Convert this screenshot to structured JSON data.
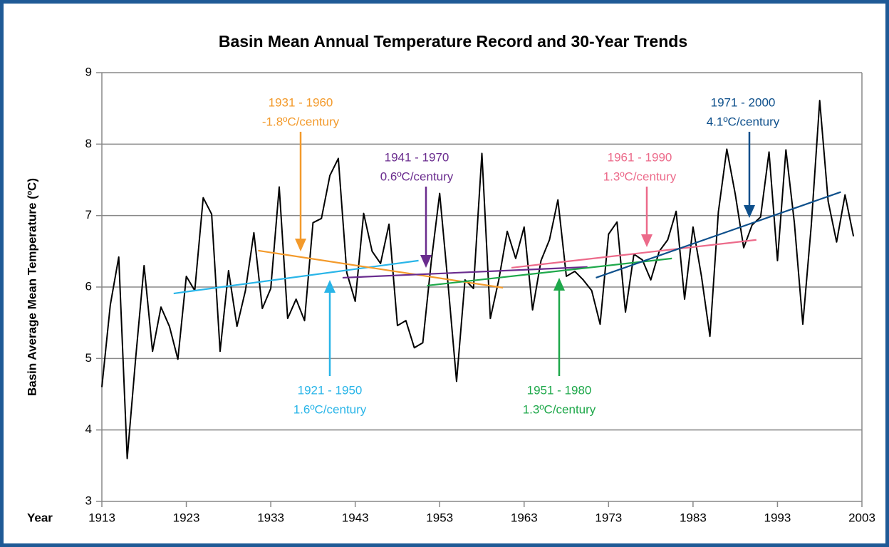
{
  "chart_data": {
    "type": "line",
    "title": "Basin Mean Annual Temperature Record and 30-Year Trends",
    "y_label": "Basin Average Mean Temperature (ºC)",
    "x_label": "Year",
    "xlim": [
      1913,
      2003
    ],
    "xticks": [
      1913,
      1923,
      1933,
      1943,
      1953,
      1963,
      1973,
      1983,
      1993,
      2003
    ],
    "ylim": [
      3,
      9
    ],
    "yticks": [
      3,
      4,
      5,
      6,
      7,
      8,
      9
    ],
    "grid": true,
    "series": [
      {
        "color": "#000000",
        "x": [
          1913,
          1914,
          1915,
          1916,
          1917,
          1918,
          1919,
          1920,
          1921,
          1922,
          1923,
          1924,
          1925,
          1926,
          1927,
          1928,
          1929,
          1930,
          1931,
          1932,
          1933,
          1934,
          1935,
          1936,
          1937,
          1938,
          1939,
          1940,
          1941,
          1942,
          1943,
          1944,
          1945,
          1946,
          1947,
          1948,
          1949,
          1950,
          1951,
          1952,
          1953,
          1954,
          1955,
          1956,
          1957,
          1958,
          1959,
          1960,
          1961,
          1962,
          1963,
          1964,
          1965,
          1966,
          1967,
          1968,
          1969,
          1970,
          1971,
          1972,
          1973,
          1974,
          1975,
          1976,
          1977,
          1978,
          1979,
          1980,
          1981,
          1982,
          1983,
          1984,
          1985,
          1986,
          1987,
          1988,
          1989,
          1990,
          1991,
          1992,
          1993,
          1994,
          1995,
          1996,
          1997,
          1998,
          1999,
          2000,
          2001,
          2002
        ],
        "values": [
          4.6,
          5.75,
          6.42,
          3.6,
          5.0,
          6.3,
          5.1,
          5.72,
          5.45,
          4.99,
          6.15,
          5.95,
          7.25,
          7.02,
          5.1,
          6.23,
          5.45,
          5.95,
          6.76,
          5.7,
          5.98,
          7.4,
          5.56,
          5.83,
          5.53,
          6.9,
          6.96,
          7.56,
          7.8,
          6.2,
          5.8,
          7.03,
          6.5,
          6.33,
          6.88,
          5.46,
          5.53,
          5.15,
          5.22,
          6.35,
          7.31,
          6.03,
          4.68,
          6.1,
          5.98,
          7.87,
          5.56,
          6.1,
          6.78,
          6.4,
          6.84,
          5.68,
          6.37,
          6.66,
          7.22,
          6.15,
          6.22,
          6.1,
          5.95,
          5.48,
          6.74,
          6.91,
          5.65,
          6.46,
          6.38,
          6.1,
          6.5,
          6.66,
          7.06,
          5.83,
          6.84,
          6.15,
          5.31,
          7.05,
          7.93,
          7.3,
          6.55,
          6.87,
          6.98,
          7.89,
          6.37,
          7.92,
          6.9,
          5.48,
          6.86,
          8.61,
          7.2,
          6.63,
          7.29,
          6.71
        ]
      },
      {
        "color": "#29b5e8",
        "x": [
          1921.5,
          1950.5
        ],
        "values": [
          5.91,
          6.37
        ]
      },
      {
        "color": "#f39a2b",
        "x": [
          1931.5,
          1960.5
        ],
        "values": [
          6.51,
          5.99
        ]
      },
      {
        "color": "#6a2c8e",
        "x": [
          1941.5,
          1970.5
        ],
        "values": [
          6.13,
          6.28
        ]
      },
      {
        "color": "#1ea84a",
        "x": [
          1951.5,
          1980.5
        ],
        "values": [
          6.02,
          6.4
        ]
      },
      {
        "color": "#ec6a8a",
        "x": [
          1961.5,
          1990.5
        ],
        "values": [
          6.27,
          6.66
        ]
      },
      {
        "color": "#0d4f8b",
        "x": [
          1971.5,
          2000.5
        ],
        "values": [
          6.13,
          7.33
        ]
      }
    ],
    "annotations": [
      {
        "text": [
          "1921 - 1950",
          "1.6ºC/century"
        ],
        "color": "#29b5e8"
      },
      {
        "text": [
          "1931 - 1960",
          "-1.8ºC/century"
        ],
        "color": "#f39a2b"
      },
      {
        "text": [
          "1941 - 1970",
          "0.6ºC/century"
        ],
        "color": "#6a2c8e"
      },
      {
        "text": [
          "1951 - 1980",
          "1.3ºC/century"
        ],
        "color": "#1ea84a"
      },
      {
        "text": [
          "1961 - 1990",
          "1.3ºC/century"
        ],
        "color": "#ec6a8a"
      },
      {
        "text": [
          "1971 - 2000",
          "4.1ºC/century"
        ],
        "color": "#0d4f8b"
      }
    ]
  }
}
